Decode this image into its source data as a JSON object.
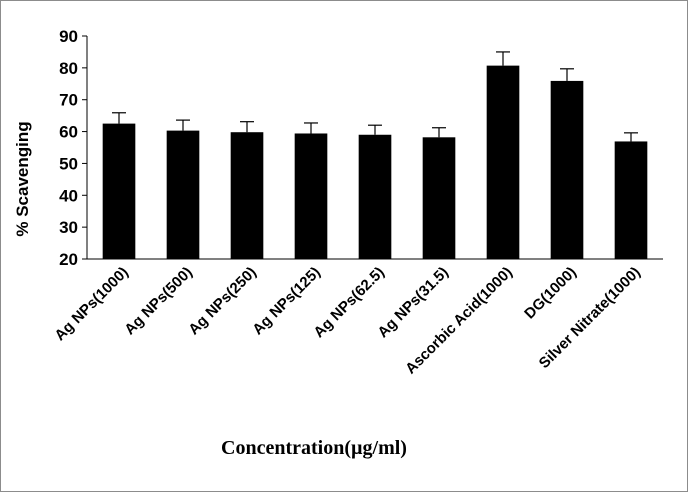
{
  "chart_data": {
    "type": "bar",
    "title": "",
    "xlabel": "Concentration(µg/ml)",
    "ylabel": "%  Scavenging",
    "ylim": [
      20,
      90
    ],
    "yticks": [
      20,
      30,
      40,
      50,
      60,
      70,
      80,
      90
    ],
    "grid": false,
    "legend": "none",
    "bar_color": "#000000",
    "categories": [
      "Ag NPs(1000)",
      "Ag NPs(500)",
      "Ag NPs(250)",
      "Ag NPs(125)",
      "Ag NPs(62.5)",
      "Ag NPs(31.5)",
      "Ascorbic Acid(1000)",
      "DG(1000)",
      "Silver Nitrate(1000)"
    ],
    "values": [
      62.5,
      60.3,
      59.8,
      59.4,
      59.0,
      58.2,
      80.7,
      75.9,
      56.9
    ],
    "errors": [
      3.4,
      3.3,
      3.3,
      3.3,
      3.0,
      3.0,
      4.3,
      3.8,
      2.7
    ]
  }
}
